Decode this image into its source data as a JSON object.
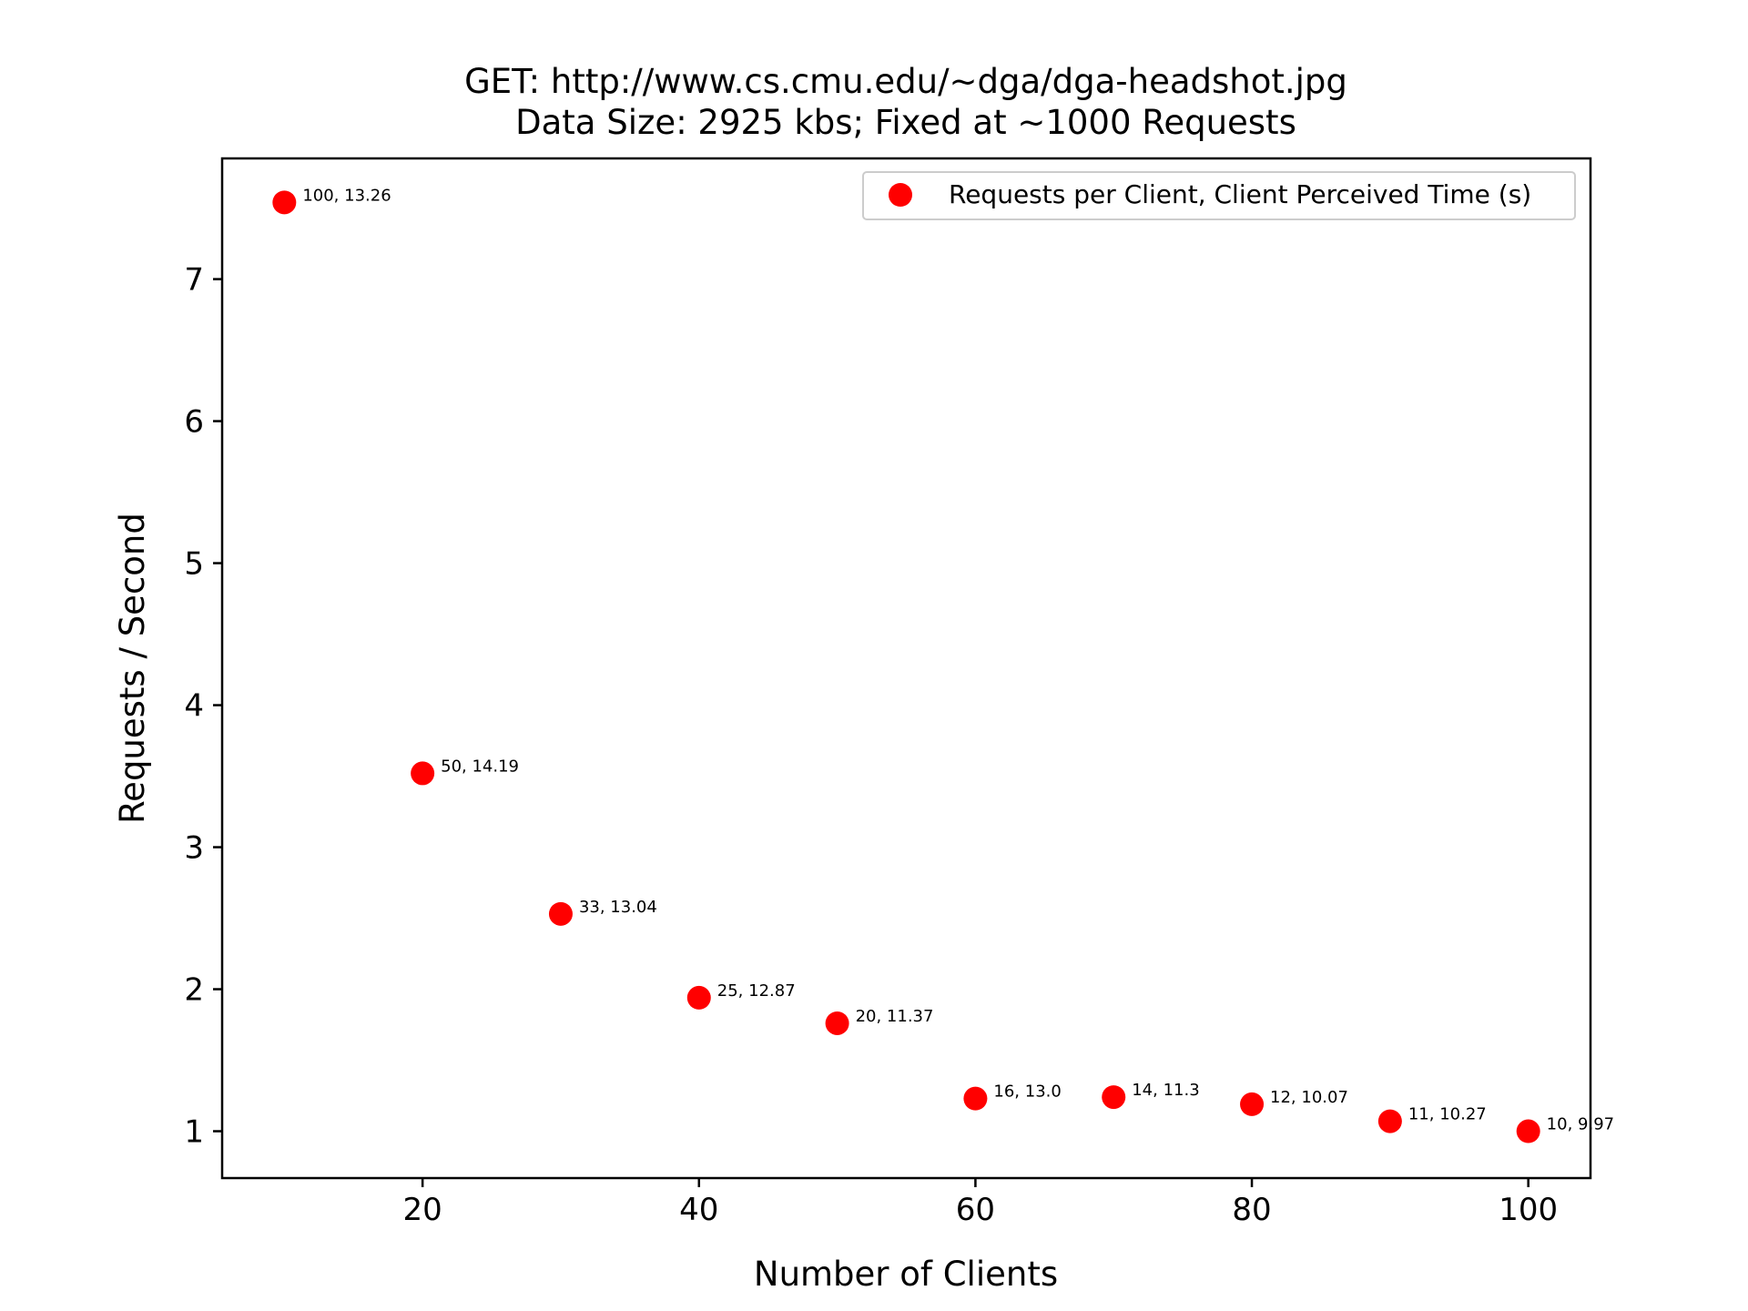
{
  "chart_data": {
    "type": "scatter",
    "title": "GET: http://www.cs.cmu.edu/~dga/dga-headshot.jpg",
    "subtitle": "Data Size: 2925 kbs; Fixed at ~1000 Requests",
    "xlabel": "Number of Clients",
    "ylabel": "Requests / Second",
    "xlim": [
      5.5,
      104.5
    ],
    "ylim": [
      0.67,
      7.85
    ],
    "xticks": [
      20,
      40,
      60,
      80,
      100
    ],
    "yticks": [
      1,
      2,
      3,
      4,
      5,
      6,
      7
    ],
    "grid": false,
    "legend_position": "top-right",
    "color": "#ff0000",
    "series": [
      {
        "name": "Requests per Client, Client Perceived Time (s)",
        "points": [
          {
            "x": 10,
            "y": 7.54,
            "label": "100, 13.26"
          },
          {
            "x": 20,
            "y": 3.52,
            "label": "50, 14.19"
          },
          {
            "x": 30,
            "y": 2.53,
            "label": "33, 13.04"
          },
          {
            "x": 40,
            "y": 1.94,
            "label": "25, 12.87"
          },
          {
            "x": 50,
            "y": 1.76,
            "label": "20, 11.37"
          },
          {
            "x": 60,
            "y": 1.23,
            "label": "16, 13.0"
          },
          {
            "x": 70,
            "y": 1.24,
            "label": "14, 11.3"
          },
          {
            "x": 80,
            "y": 1.19,
            "label": "12, 10.07"
          },
          {
            "x": 90,
            "y": 1.07,
            "label": "11, 10.27"
          },
          {
            "x": 100,
            "y": 1.0,
            "label": "10, 9.97"
          }
        ]
      }
    ]
  }
}
